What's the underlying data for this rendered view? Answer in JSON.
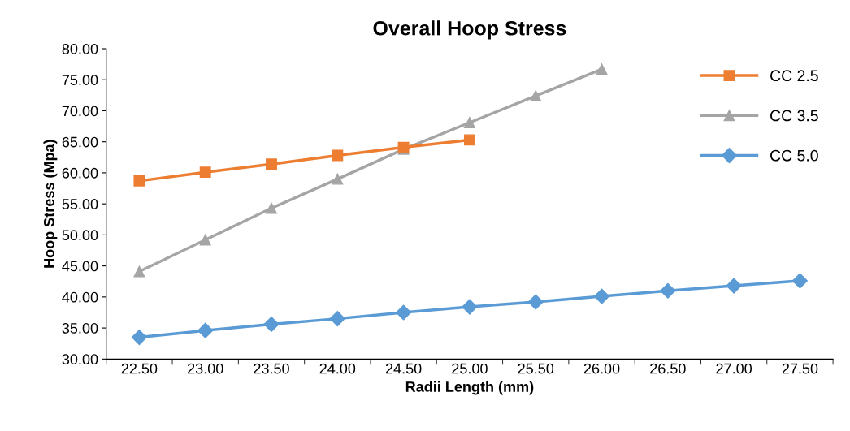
{
  "chart_data": {
    "type": "line",
    "title": "Overall Hoop Stress",
    "xlabel": "Radii Length (mm)",
    "ylabel": "Hoop Stress (Mpa)",
    "categories": [
      "22.50",
      "23.00",
      "23.50",
      "24.00",
      "24.50",
      "25.00",
      "25.50",
      "26.00",
      "26.50",
      "27.00",
      "27.50"
    ],
    "series": [
      {
        "name": "CC 2.5",
        "color": "#ed7d31",
        "marker": "square",
        "values": [
          58.7,
          60.1,
          61.4,
          62.8,
          64.1,
          65.3,
          null,
          null,
          null,
          null,
          null
        ]
      },
      {
        "name": "CC 3.5",
        "color": "#a5a5a5",
        "marker": "triangle",
        "values": [
          44.1,
          49.2,
          54.3,
          59.0,
          63.8,
          68.1,
          72.4,
          76.7,
          null,
          null,
          null
        ]
      },
      {
        "name": "CC 5.0",
        "color": "#5b9bd5",
        "marker": "diamond",
        "values": [
          33.5,
          34.6,
          35.6,
          36.5,
          37.5,
          38.4,
          39.2,
          40.1,
          41.0,
          41.8,
          42.6
        ]
      }
    ],
    "ylim": [
      30,
      80
    ],
    "yticks": [
      {
        "value": 30,
        "label": "30.00"
      },
      {
        "value": 35,
        "label": "35.00"
      },
      {
        "value": 40,
        "label": "40.00"
      },
      {
        "value": 45,
        "label": "45.00"
      },
      {
        "value": 50,
        "label": "50.00"
      },
      {
        "value": 55,
        "label": "55.00"
      },
      {
        "value": 60,
        "label": "60.00"
      },
      {
        "value": 65,
        "label": "65.00"
      },
      {
        "value": 70,
        "label": "70.00"
      },
      {
        "value": 75,
        "label": "75.00"
      },
      {
        "value": 80,
        "label": "80.00"
      }
    ],
    "grid": false,
    "legend": "right",
    "line_style": "solid"
  }
}
